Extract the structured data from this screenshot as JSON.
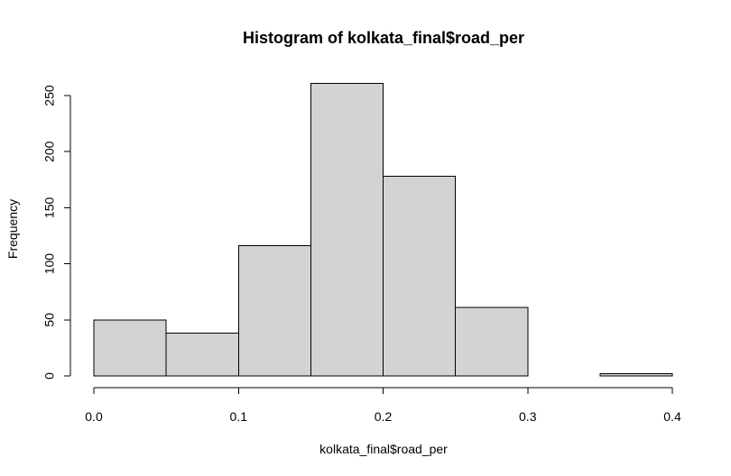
{
  "chart_data": {
    "type": "bar",
    "title": "Histogram of kolkata_final$road_per",
    "xlabel": "kolkata_final$road_per",
    "ylabel": "Frequency",
    "bins": [
      {
        "start": 0.0,
        "end": 0.05,
        "count": 50
      },
      {
        "start": 0.05,
        "end": 0.1,
        "count": 38
      },
      {
        "start": 0.1,
        "end": 0.15,
        "count": 116
      },
      {
        "start": 0.15,
        "end": 0.2,
        "count": 261
      },
      {
        "start": 0.2,
        "end": 0.25,
        "count": 178
      },
      {
        "start": 0.25,
        "end": 0.3,
        "count": 61
      },
      {
        "start": 0.3,
        "end": 0.35,
        "count": 0
      },
      {
        "start": 0.35,
        "end": 0.4,
        "count": 2
      }
    ],
    "x_ticks": [
      "0.0",
      "0.1",
      "0.2",
      "0.3",
      "0.4"
    ],
    "y_ticks": [
      "0",
      "50",
      "100",
      "150",
      "200",
      "250"
    ],
    "xlim": [
      0,
      0.4
    ],
    "ylim": [
      0,
      250
    ],
    "grid": false,
    "legend": "none",
    "colors": {
      "bar_fill": "#d3d3d3",
      "bar_stroke": "#000000",
      "axis": "#000000",
      "text": "#000000"
    }
  }
}
